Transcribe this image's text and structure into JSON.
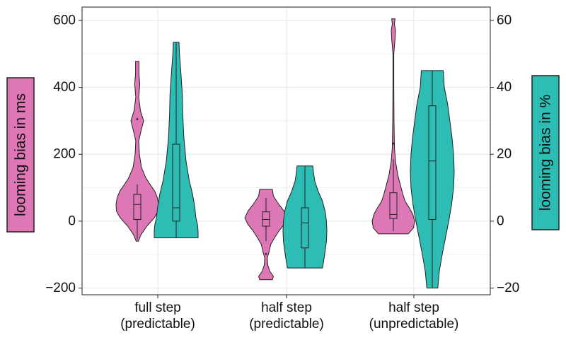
{
  "colors": {
    "ms": "#DD77B5",
    "pct": "#2DBDB5",
    "outline": "#222222",
    "grid": "#e6e6e6"
  },
  "chart_data": {
    "type": "violin",
    "categories": [
      [
        "full step",
        "(predictable)"
      ],
      [
        "half step",
        "(predictable)"
      ],
      [
        "half step",
        "(unpredictable)"
      ]
    ],
    "y_left": {
      "label": "looming bias in ms",
      "lim": [
        -220,
        640
      ],
      "ticks": [
        -200,
        0,
        200,
        400,
        600
      ],
      "tick_labels": [
        "−200",
        "0",
        "200",
        "400",
        "600"
      ]
    },
    "y_right": {
      "label": "looming bias in %",
      "lim": [
        -22,
        64
      ],
      "ticks": [
        -20,
        0,
        20,
        40,
        60
      ],
      "tick_labels": [
        "−20",
        "0",
        "20",
        "40",
        "60"
      ]
    },
    "grid": true,
    "series": [
      {
        "axis": "left",
        "violins": [
          {
            "min": -60,
            "max": 478,
            "box": {
              "q1": 5,
              "median": 50,
              "q3": 80,
              "wlow": -55,
              "whigh": 110
            },
            "outliers": [
              305
            ],
            "profile": [
              [
                -60,
                0.05
              ],
              [
                -40,
                0.18
              ],
              [
                -15,
                0.45
              ],
              [
                10,
                0.8
              ],
              [
                30,
                0.98
              ],
              [
                50,
                1.0
              ],
              [
                70,
                0.95
              ],
              [
                90,
                0.82
              ],
              [
                110,
                0.6
              ],
              [
                130,
                0.4
              ],
              [
                160,
                0.2
              ],
              [
                200,
                0.1
              ],
              [
                240,
                0.07
              ],
              [
                270,
                0.18
              ],
              [
                300,
                0.3
              ],
              [
                330,
                0.15
              ],
              [
                370,
                0.07
              ],
              [
                410,
                0.12
              ],
              [
                440,
                0.08
              ],
              [
                478,
                0.08
              ]
            ]
          },
          {
            "min": -175,
            "max": 95,
            "box": {
              "q1": -15,
              "median": 5,
              "q3": 28,
              "wlow": -60,
              "whigh": 70
            },
            "outliers": [
              -98
            ],
            "profile": [
              [
                -175,
                0.3
              ],
              [
                -165,
                0.35
              ],
              [
                -150,
                0.18
              ],
              [
                -130,
                0.08
              ],
              [
                -110,
                0.06
              ],
              [
                -90,
                0.15
              ],
              [
                -70,
                0.22
              ],
              [
                -50,
                0.4
              ],
              [
                -30,
                0.6
              ],
              [
                -10,
                0.85
              ],
              [
                10,
                1.0
              ],
              [
                30,
                0.85
              ],
              [
                55,
                0.55
              ],
              [
                75,
                0.35
              ],
              [
                95,
                0.3
              ]
            ]
          },
          {
            "min": -38,
            "max": 605,
            "box": {
              "q1": 8,
              "median": 20,
              "q3": 85,
              "wlow": -30,
              "whigh": 185
            },
            "outliers": [
              232
            ],
            "profile": [
              [
                -38,
                0.7
              ],
              [
                -20,
                0.95
              ],
              [
                0,
                1.0
              ],
              [
                20,
                0.92
              ],
              [
                40,
                0.75
              ],
              [
                60,
                0.55
              ],
              [
                80,
                0.45
              ],
              [
                110,
                0.32
              ],
              [
                140,
                0.2
              ],
              [
                180,
                0.1
              ],
              [
                220,
                0.05
              ],
              [
                260,
                0.04
              ],
              [
                300,
                0.03
              ],
              [
                400,
                0.02
              ],
              [
                500,
                0.02
              ],
              [
                545,
                0.08
              ],
              [
                570,
                0.1
              ],
              [
                590,
                0.05
              ],
              [
                605,
                0.08
              ]
            ]
          }
        ]
      },
      {
        "axis": "right",
        "violins": [
          {
            "min": -5,
            "max": 53.5,
            "box": {
              "q1": 0,
              "median": 4,
              "q3": 23,
              "wlow": -5,
              "whigh": 53.5
            },
            "outliers": [],
            "profile": [
              [
                -5,
                1.0
              ],
              [
                -3,
                1.0
              ],
              [
                -1,
                0.97
              ],
              [
                1,
                0.9
              ],
              [
                4,
                0.85
              ],
              [
                8,
                0.75
              ],
              [
                12,
                0.6
              ],
              [
                18,
                0.45
              ],
              [
                25,
                0.35
              ],
              [
                32,
                0.3
              ],
              [
                38,
                0.28
              ],
              [
                44,
                0.22
              ],
              [
                50,
                0.15
              ],
              [
                53.5,
                0.13
              ]
            ]
          },
          {
            "min": -14,
            "max": 16.5,
            "box": {
              "q1": -8,
              "median": -0.5,
              "q3": 4,
              "wlow": -14,
              "whigh": 16.5
            },
            "outliers": [],
            "profile": [
              [
                -14,
                0.8
              ],
              [
                -12,
                0.85
              ],
              [
                -9,
                0.92
              ],
              [
                -6,
                0.98
              ],
              [
                -3,
                1.0
              ],
              [
                0,
                0.98
              ],
              [
                3,
                0.92
              ],
              [
                6,
                0.8
              ],
              [
                9,
                0.6
              ],
              [
                12,
                0.45
              ],
              [
                15,
                0.38
              ],
              [
                16.5,
                0.36
              ]
            ]
          },
          {
            "min": -20,
            "max": 45,
            "box": {
              "q1": 0.5,
              "median": 18,
              "q3": 34.5,
              "wlow": -20,
              "whigh": 45
            },
            "outliers": [],
            "profile": [
              [
                -20,
                0.25
              ],
              [
                -15,
                0.32
              ],
              [
                -10,
                0.45
              ],
              [
                -5,
                0.6
              ],
              [
                0,
                0.75
              ],
              [
                5,
                0.88
              ],
              [
                10,
                0.97
              ],
              [
                15,
                1.0
              ],
              [
                20,
                0.97
              ],
              [
                25,
                0.9
              ],
              [
                30,
                0.8
              ],
              [
                35,
                0.7
              ],
              [
                40,
                0.55
              ],
              [
                45,
                0.5
              ]
            ]
          }
        ]
      }
    ]
  }
}
